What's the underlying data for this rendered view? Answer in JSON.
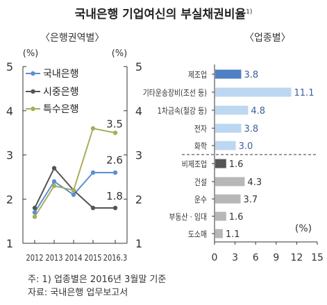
{
  "title": "국내은행 기업여신의 부실채권비율",
  "title_sup": "1)",
  "left_subtitle": "〈은행권역별〉",
  "right_subtitle": "〈업종별〉",
  "note": "주: 1) 업종별은 2016년 3월말 기준",
  "source": "자료: 국내은행 업무보고서",
  "colors": {
    "domestic": "#5b8fd0",
    "commercial": "#555555",
    "special": "#a8ad5c",
    "bar_dark_blue": "#4f7fc4",
    "bar_light_blue": "#bcd7f0",
    "bar_dark_gray": "#555555",
    "bar_light_gray": "#b7b7b7"
  },
  "chart_data": [
    {
      "type": "line",
      "x": [
        "2012",
        "2013",
        "2014",
        "2015",
        "2016.3"
      ],
      "y_unit_left": "(%)",
      "y_unit_right": "(%)",
      "ylim": [
        1,
        5
      ],
      "yticks": [
        "1",
        "2",
        "3",
        "4",
        "5"
      ],
      "series": [
        {
          "name": "국내은행",
          "values": [
            1.7,
            2.4,
            2.1,
            2.6,
            2.6
          ]
        },
        {
          "name": "시중은행",
          "values": [
            1.8,
            2.7,
            2.2,
            1.8,
            1.8
          ]
        },
        {
          "name": "특수은행",
          "values": [
            1.6,
            2.3,
            2.2,
            3.6,
            3.5
          ]
        }
      ],
      "end_labels": [
        "2.6",
        "1.8",
        "3.5"
      ]
    },
    {
      "type": "bar",
      "orientation": "horizontal",
      "categories": [
        "제조업",
        "기타운송장비(조선 등)",
        "1차금속(철강 등)",
        "전자",
        "화학",
        "비제조업",
        "건설",
        "운수",
        "부동산 · 임대",
        "도소매"
      ],
      "values": [
        3.8,
        11.1,
        4.8,
        3.8,
        3.0,
        1.6,
        4.3,
        3.7,
        1.6,
        1.1
      ],
      "value_labels": [
        "3.8",
        "11.1",
        "4.8",
        "3.8",
        "3.0",
        "1.6",
        "4.3",
        "3.7",
        "1.6",
        "1.1"
      ],
      "xlim": [
        0,
        15
      ],
      "xticks": [
        "0",
        "3",
        "6",
        "9",
        "12",
        "15"
      ],
      "x_unit": "(%)"
    }
  ]
}
